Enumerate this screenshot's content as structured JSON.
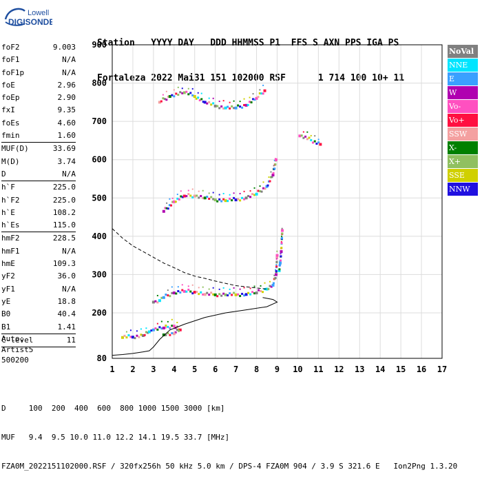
{
  "logo": {
    "line1": "Lowell",
    "line2": "DIGISONDE"
  },
  "header": {
    "labels": "Station   YYYY DAY   DDD HHMMSS P1  FFS S AXN PPS IGA PS",
    "values": "Fortaleza 2022 Mai31 151 102000 RSF      1 714 100 10+ 11"
  },
  "params": {
    "group1": [
      {
        "name": "foF2",
        "value": "9.003"
      },
      {
        "name": "foF1",
        "value": "N/A"
      },
      {
        "name": "foF1p",
        "value": "N/A"
      },
      {
        "name": "foE",
        "value": "2.96"
      },
      {
        "name": "foEp",
        "value": "2.90"
      },
      {
        "name": "fxI",
        "value": "9.35"
      },
      {
        "name": "foEs",
        "value": "4.60"
      },
      {
        "name": "fmin",
        "value": "1.60"
      }
    ],
    "group2": [
      {
        "name": "MUF(D)",
        "value": "33.69"
      },
      {
        "name": "M(D)",
        "value": "3.74"
      },
      {
        "name": "D",
        "value": "N/A"
      }
    ],
    "group3": [
      {
        "name": "h`F",
        "value": "225.0"
      },
      {
        "name": "h`F2",
        "value": "225.0"
      },
      {
        "name": "h`E",
        "value": "108.2"
      },
      {
        "name": "h`Es",
        "value": "115.0"
      }
    ],
    "group4": [
      {
        "name": "hmF2",
        "value": "228.5"
      },
      {
        "name": "hmF1",
        "value": "N/A"
      },
      {
        "name": "hmE",
        "value": "109.3"
      },
      {
        "name": "yF2",
        "value": "36.0"
      },
      {
        "name": "yF1",
        "value": "N/A"
      },
      {
        "name": "yE",
        "value": "18.8"
      },
      {
        "name": "B0",
        "value": "40.4"
      },
      {
        "name": "B1",
        "value": "1.41"
      }
    ],
    "group5": [
      {
        "name": "C-level",
        "value": "11"
      }
    ]
  },
  "notes": {
    "line1": "Auto:",
    "line2": "Artist5",
    "line3": "500200"
  },
  "legend": [
    {
      "label": "NoVal",
      "color": "#808080"
    },
    {
      "label": "NNE",
      "color": "#00e5ff"
    },
    {
      "label": "E",
      "color": "#3aa0ff"
    },
    {
      "label": "W",
      "color": "#b000b0"
    },
    {
      "label": "Vo-",
      "color": "#ff50c0"
    },
    {
      "label": "Vo+",
      "color": "#ff1040"
    },
    {
      "label": "SSW",
      "color": "#f4a0a0"
    },
    {
      "label": "X-",
      "color": "#008000"
    },
    {
      "label": "X+",
      "color": "#90c060"
    },
    {
      "label": "SSE",
      "color": "#d0d000"
    },
    {
      "label": "NNW",
      "color": "#2010e0"
    }
  ],
  "footer": {
    "line1": "D     100  200  400  600  800 1000 1500 3000 [km]",
    "line2": "MUF   9.4  9.5 10.0 11.0 12.2 14.1 19.5 33.7 [MHz]",
    "line3": "FZA0M_2022151102000.RSF / 320fx256h 50 kHz 5.0 km / DPS-4 FZA0M 904 / 3.9 S 321.6 E   Ion2Png 1.3.20"
  },
  "chart_data": {
    "type": "scatter",
    "xlim": [
      1,
      17
    ],
    "ylim": [
      80,
      900
    ],
    "xticks": [
      1,
      2,
      3,
      4,
      5,
      6,
      7,
      8,
      9,
      10,
      11,
      12,
      13,
      14,
      15,
      16,
      17
    ],
    "yticks": [
      80,
      200,
      300,
      400,
      500,
      600,
      700,
      800,
      900
    ],
    "grid": true,
    "series": [
      {
        "points": [
          [
            3.0,
            228
          ],
          [
            3.3,
            232
          ],
          [
            3.5,
            240
          ],
          [
            4.0,
            252
          ],
          [
            4.5,
            256
          ],
          [
            5.0,
            254
          ],
          [
            5.5,
            248
          ],
          [
            6.0,
            247
          ],
          [
            6.5,
            247
          ],
          [
            7.0,
            247
          ],
          [
            7.5,
            248
          ],
          [
            8.0,
            252
          ],
          [
            8.5,
            262
          ],
          [
            8.8,
            272
          ],
          [
            8.95,
            300
          ],
          [
            9.0,
            350
          ]
        ]
      },
      {
        "points": [
          [
            3.5,
            465
          ],
          [
            4.0,
            490
          ],
          [
            4.5,
            505
          ],
          [
            5.0,
            505
          ],
          [
            5.5,
            500
          ],
          [
            6.0,
            495
          ],
          [
            6.5,
            493
          ],
          [
            7.0,
            495
          ],
          [
            7.5,
            500
          ],
          [
            8.0,
            510
          ],
          [
            8.5,
            530
          ],
          [
            8.8,
            560
          ],
          [
            8.95,
            600
          ]
        ]
      },
      {
        "points": [
          [
            3.3,
            750
          ],
          [
            3.8,
            765
          ],
          [
            4.5,
            775
          ],
          [
            5.0,
            765
          ],
          [
            5.5,
            750
          ],
          [
            6.0,
            740
          ],
          [
            6.5,
            735
          ],
          [
            7.0,
            735
          ],
          [
            7.5,
            742
          ],
          [
            8.0,
            760
          ],
          [
            8.4,
            780
          ]
        ]
      },
      {
        "points": [
          [
            1.5,
            135
          ],
          [
            2.0,
            136
          ],
          [
            2.5,
            140
          ],
          [
            2.8,
            150
          ],
          [
            3.0,
            155
          ],
          [
            3.5,
            160
          ],
          [
            4.0,
            165
          ],
          [
            4.3,
            155
          ],
          [
            4.0,
            145
          ],
          [
            3.5,
            142
          ]
        ]
      },
      {
        "points": [
          [
            9.1,
            310
          ],
          [
            9.15,
            330
          ],
          [
            9.2,
            360
          ],
          [
            9.25,
            415
          ]
        ]
      },
      {
        "points": [
          [
            10.1,
            662
          ],
          [
            11.1,
            640
          ]
        ]
      }
    ],
    "profile_solid": [
      [
        1,
        88
      ],
      [
        1.5,
        90
      ],
      [
        2.0,
        93
      ],
      [
        2.5,
        97
      ],
      [
        2.8,
        100
      ],
      [
        3.0,
        110
      ],
      [
        3.3,
        130
      ],
      [
        3.8,
        155
      ],
      [
        4.5,
        170
      ],
      [
        5.5,
        188
      ],
      [
        6.5,
        200
      ],
      [
        7.5,
        208
      ],
      [
        8.5,
        216
      ],
      [
        9.0,
        228
      ],
      [
        8.8,
        235
      ],
      [
        8.3,
        240
      ]
    ],
    "profile_dashed": [
      [
        1,
        420
      ],
      [
        1.5,
        395
      ],
      [
        2.0,
        375
      ],
      [
        2.5,
        360
      ],
      [
        3.0,
        345
      ],
      [
        3.5,
        330
      ],
      [
        4.0,
        318
      ],
      [
        4.5,
        305
      ],
      [
        5.0,
        296
      ],
      [
        5.5,
        290
      ],
      [
        6.0,
        283
      ],
      [
        6.5,
        277
      ],
      [
        7.0,
        271
      ],
      [
        7.5,
        268
      ],
      [
        8.0,
        265
      ],
      [
        8.5,
        262
      ]
    ]
  }
}
